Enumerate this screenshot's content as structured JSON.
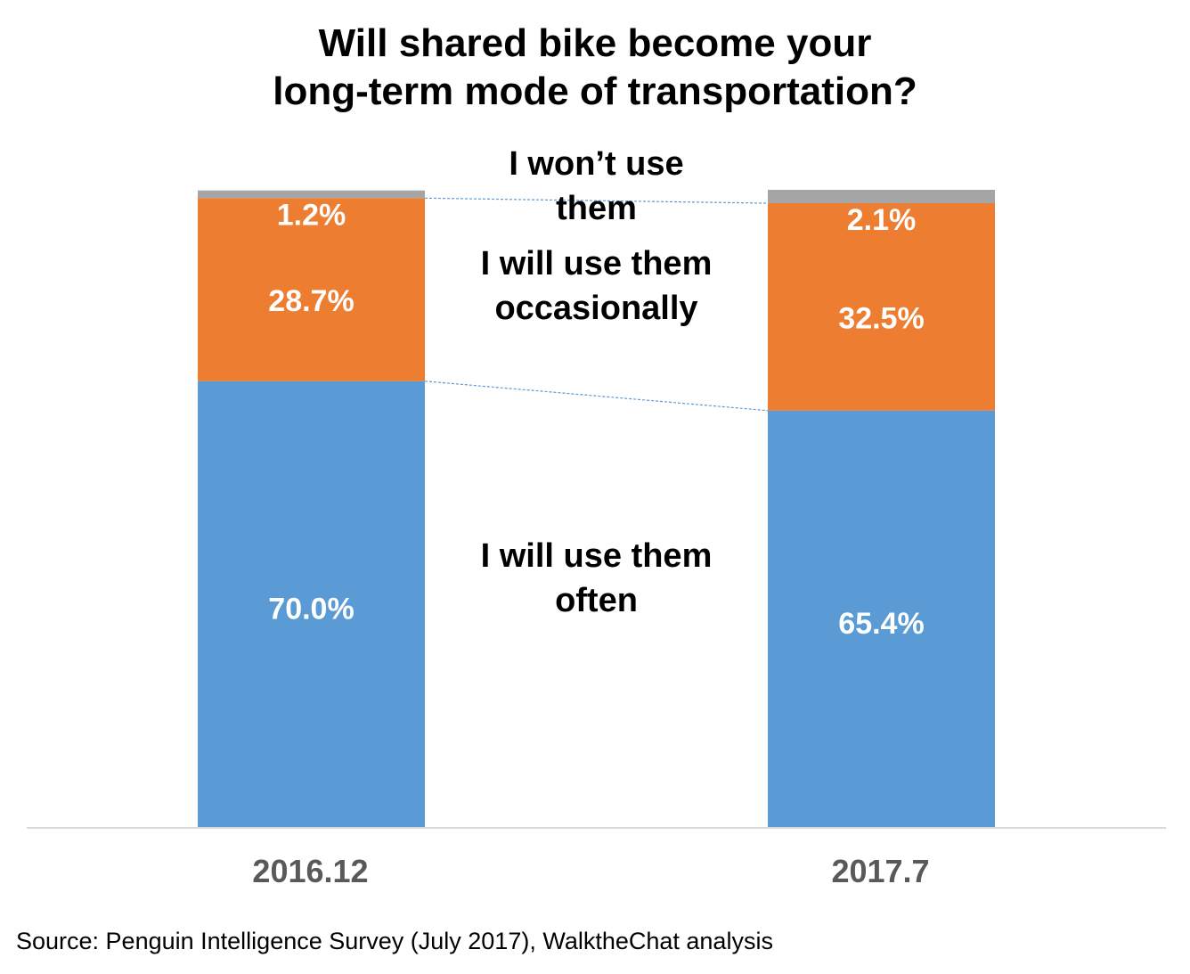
{
  "chart_data": {
    "type": "bar",
    "stacked": true,
    "title_lines": [
      "Will shared bike become your",
      "long-term mode of transportation?"
    ],
    "categories": [
      "2016.12",
      "2017.7"
    ],
    "series": [
      {
        "name": "I will use them often",
        "label_lines": [
          "I will use them",
          "often"
        ],
        "values": [
          70.0,
          65.4
        ],
        "data_labels": [
          "70.0%",
          "65.4%"
        ],
        "color": "#5B9BD5",
        "label_color": "#ffffff"
      },
      {
        "name": "I will use them occasionally",
        "label_lines": [
          "I will use them",
          "occasionally"
        ],
        "values": [
          28.7,
          32.5
        ],
        "data_labels": [
          "28.7%",
          "32.5%"
        ],
        "color": "#ED7D31",
        "label_color": "#ffffff"
      },
      {
        "name": "I won’t use them",
        "label_lines": [
          "I won’t use",
          "them"
        ],
        "values": [
          1.2,
          2.1
        ],
        "data_labels": [
          "1.2%",
          "2.1%"
        ],
        "color": "#A5A5A5",
        "label_color": "#ffffff"
      }
    ],
    "ylim": [
      0,
      100
    ],
    "grid": false,
    "series_connector_lines": true,
    "axis_line_color": "#D9D9D9",
    "category_label_color": "#595959",
    "source": "Source: Penguin Intelligence Survey (July 2017), WalktheChat analysis"
  }
}
